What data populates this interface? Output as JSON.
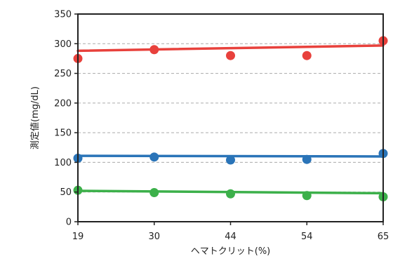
{
  "chart_data": {
    "type": "scatter",
    "title": "",
    "xlabel": "ヘマトクリット(%)",
    "ylabel": "測定値(mg/dL)",
    "x": [
      19,
      30,
      44,
      54,
      65
    ],
    "x_tick_labels": [
      "19",
      "30",
      "44",
      "54",
      "65"
    ],
    "xlim": [
      19,
      65
    ],
    "ylim": [
      0,
      350
    ],
    "y_ticks": [
      0,
      50,
      100,
      150,
      200,
      250,
      300,
      350
    ],
    "y_tick_labels": [
      "0",
      "50",
      "100",
      "150",
      "200",
      "250",
      "300",
      "350"
    ],
    "grid": "horizontal-dashed",
    "legend": "none",
    "series": [
      {
        "color": "#e8413c",
        "values": [
          275,
          290,
          280,
          280,
          305
        ],
        "trend": [
          288,
          297
        ]
      },
      {
        "color": "#2a74b8",
        "values": [
          107,
          109,
          104,
          105,
          115
        ],
        "trend": [
          111,
          110
        ]
      },
      {
        "color": "#3cb04a",
        "values": [
          53,
          49,
          47,
          44,
          42
        ],
        "trend": [
          52,
          48
        ]
      }
    ]
  }
}
